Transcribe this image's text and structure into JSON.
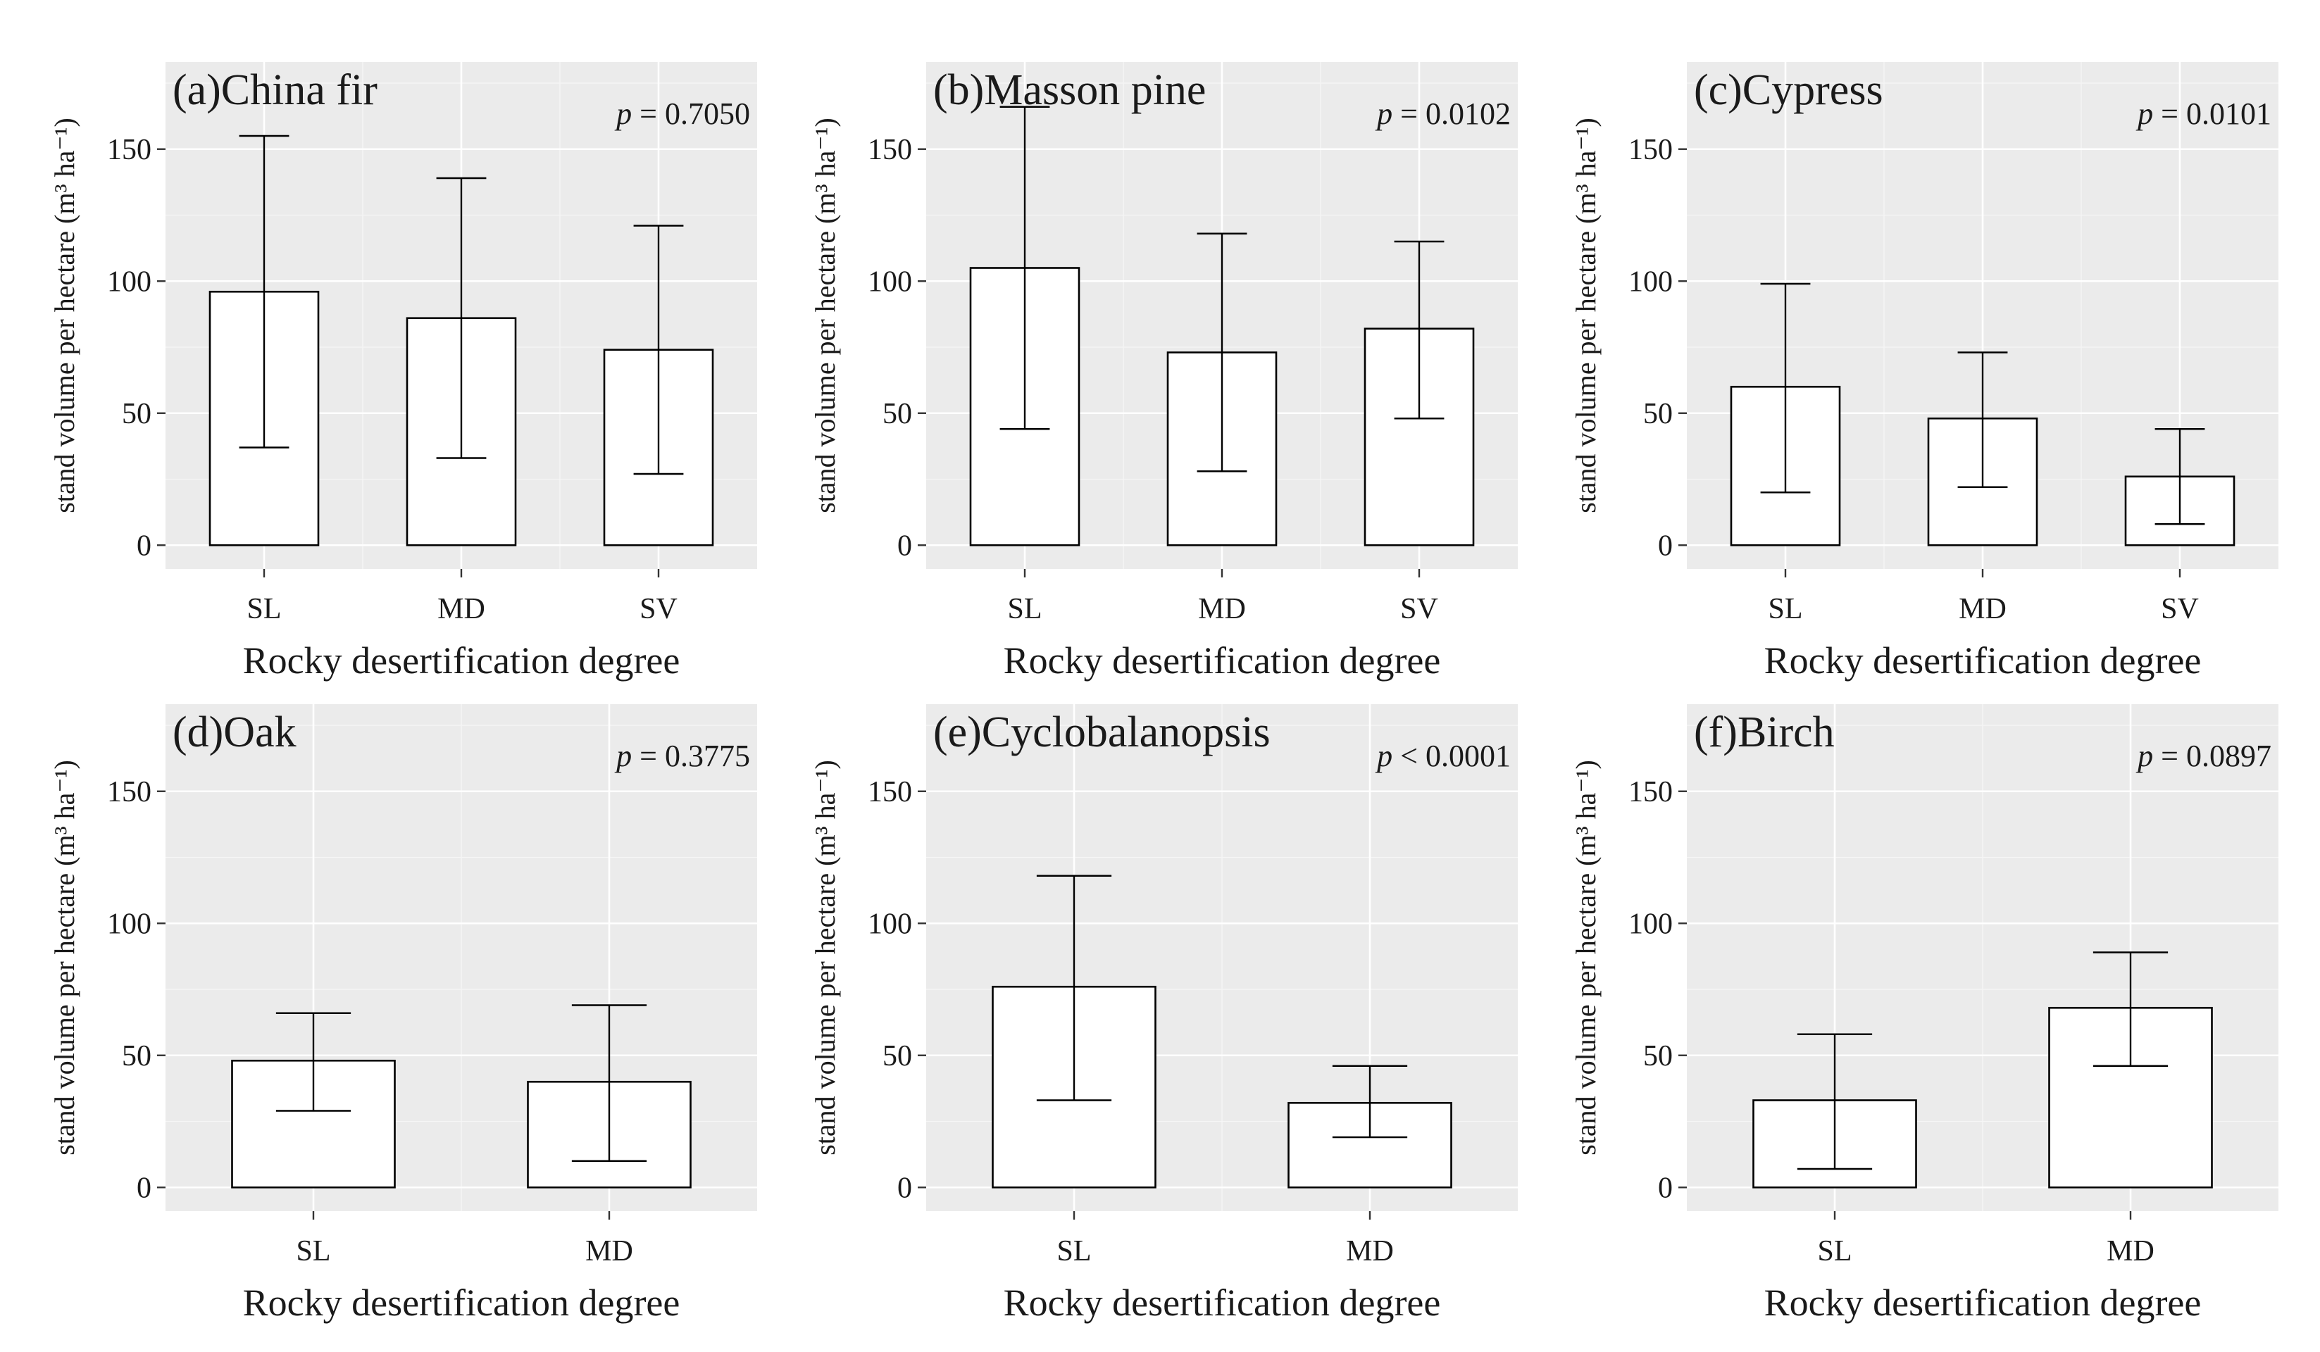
{
  "figure": {
    "chart_data": [
      {
        "type": "bar",
        "title": "(a)China fir",
        "p_label": "p",
        "p_text": " = 0.7050",
        "xlabel": "Rocky desertification degree",
        "ylabel": "stand volume per hectare (m³ ha⁻¹)",
        "ylim": [
          -9,
          183
        ],
        "yticks": [
          0,
          50,
          100,
          150
        ],
        "categories": [
          "SL",
          "MD",
          "SV"
        ],
        "values": [
          96,
          86,
          74
        ],
        "error_low": [
          37,
          33,
          27
        ],
        "error_high": [
          155,
          139,
          121
        ]
      },
      {
        "type": "bar",
        "title": "(b)Masson pine",
        "p_label": "p",
        "p_text": " = 0.0102",
        "xlabel": "Rocky desertification degree",
        "ylabel": "stand volume per hectare (m³ ha⁻¹)",
        "ylim": [
          -9,
          183
        ],
        "yticks": [
          0,
          50,
          100,
          150
        ],
        "categories": [
          "SL",
          "MD",
          "SV"
        ],
        "values": [
          105,
          73,
          82
        ],
        "error_low": [
          44,
          28,
          48
        ],
        "error_high": [
          166,
          118,
          115
        ]
      },
      {
        "type": "bar",
        "title": "(c)Cypress",
        "p_label": "p",
        "p_text": " = 0.0101",
        "xlabel": "Rocky desertification degree",
        "ylabel": "stand volume per hectare (m³ ha⁻¹)",
        "ylim": [
          -9,
          183
        ],
        "yticks": [
          0,
          50,
          100,
          150
        ],
        "categories": [
          "SL",
          "MD",
          "SV"
        ],
        "values": [
          60,
          48,
          26
        ],
        "error_low": [
          20,
          22,
          8
        ],
        "error_high": [
          99,
          73,
          44
        ]
      },
      {
        "type": "bar",
        "title": "(d)Oak",
        "p_label": "p",
        "p_text": " = 0.3775",
        "xlabel": "Rocky desertification degree",
        "ylabel": "stand volume per hectare (m³ ha⁻¹)",
        "ylim": [
          -9,
          183
        ],
        "yticks": [
          0,
          50,
          100,
          150
        ],
        "categories": [
          "SL",
          "MD"
        ],
        "values": [
          48,
          40
        ],
        "error_low": [
          29,
          10
        ],
        "error_high": [
          66,
          69
        ]
      },
      {
        "type": "bar",
        "title": "(e)Cyclobalanopsis",
        "p_label": "p",
        "p_text": " < 0.0001",
        "xlabel": "Rocky desertification degree",
        "ylabel": "stand volume per hectare (m³ ha⁻¹)",
        "ylim": [
          -9,
          183
        ],
        "yticks": [
          0,
          50,
          100,
          150
        ],
        "categories": [
          "SL",
          "MD"
        ],
        "values": [
          76,
          32
        ],
        "error_low": [
          33,
          19
        ],
        "error_high": [
          118,
          46
        ]
      },
      {
        "type": "bar",
        "title": "(f)Birch",
        "p_label": "p",
        "p_text": " = 0.0897",
        "xlabel": "Rocky desertification degree",
        "ylabel": "stand volume per hectare (m³ ha⁻¹)",
        "ylim": [
          -9,
          183
        ],
        "yticks": [
          0,
          50,
          100,
          150
        ],
        "categories": [
          "SL",
          "MD"
        ],
        "values": [
          33,
          68
        ],
        "error_low": [
          7,
          46
        ],
        "error_high": [
          58,
          89
        ]
      }
    ],
    "colors": {
      "panel_background": "#ebebeb",
      "grid": "#ffffff",
      "bar_fill": "#ffffff",
      "bar_edge": "#000000"
    }
  }
}
